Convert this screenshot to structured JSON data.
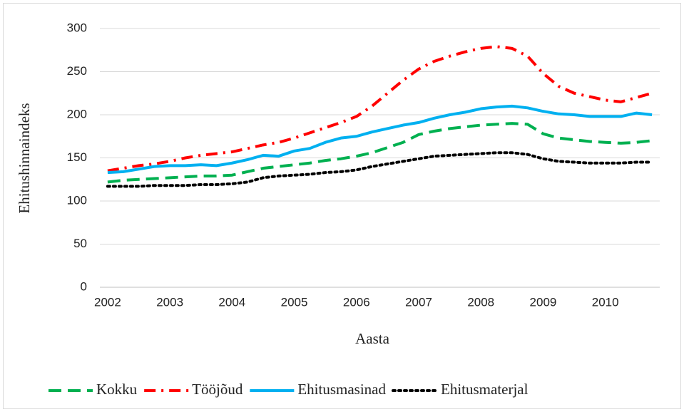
{
  "chart_data": {
    "type": "line",
    "x_label": "Aasta",
    "y_label": "Ehitushinnaindeks",
    "categories": [
      "2002",
      null,
      null,
      null,
      "2003",
      null,
      null,
      null,
      "2004",
      null,
      null,
      null,
      "2005",
      null,
      null,
      null,
      "2006",
      null,
      null,
      null,
      "2007",
      null,
      null,
      null,
      "2008",
      null,
      null,
      null,
      "2009",
      null,
      null,
      null,
      "2010",
      null,
      null,
      null
    ],
    "series": [
      {
        "name": "Kokku",
        "color": "#00b050",
        "dash": "dashed",
        "values": [
          122,
          124,
          125,
          126,
          127,
          128,
          129,
          129,
          130,
          134,
          138,
          140,
          142,
          144,
          147,
          149,
          152,
          156,
          162,
          168,
          177,
          181,
          184,
          186,
          188,
          189,
          190,
          189,
          178,
          173,
          171,
          169,
          168,
          167,
          168,
          170
        ]
      },
      {
        "name": "Tööjõud",
        "color": "#ff0000",
        "dash": "dashdot",
        "values": [
          135,
          138,
          141,
          143,
          146,
          150,
          153,
          155,
          157,
          161,
          165,
          168,
          173,
          179,
          185,
          191,
          198,
          210,
          225,
          240,
          253,
          262,
          268,
          273,
          277,
          279,
          277,
          268,
          248,
          233,
          225,
          221,
          217,
          215,
          220,
          225
        ]
      },
      {
        "name": "Ehitusmasinad",
        "color": "#00b0f0",
        "dash": "solid",
        "values": [
          133,
          134,
          137,
          140,
          141,
          141,
          142,
          141,
          144,
          148,
          153,
          152,
          158,
          161,
          168,
          173,
          175,
          180,
          184,
          188,
          191,
          196,
          200,
          203,
          207,
          209,
          210,
          208,
          204,
          201,
          200,
          198,
          198,
          198,
          202,
          200
        ]
      },
      {
        "name": "Ehitusmaterjal",
        "color": "#000000",
        "dash": "dotted",
        "values": [
          117,
          117,
          117,
          118,
          118,
          118,
          119,
          119,
          120,
          122,
          127,
          129,
          130,
          131,
          133,
          134,
          136,
          140,
          143,
          146,
          149,
          152,
          153,
          154,
          155,
          156,
          156,
          154,
          149,
          146,
          145,
          144,
          144,
          144,
          145,
          145
        ]
      }
    ],
    "ylim": [
      0,
      300
    ],
    "yticks": [
      0,
      50,
      100,
      150,
      200,
      250,
      300
    ],
    "grid": true,
    "legend": "bottom"
  }
}
